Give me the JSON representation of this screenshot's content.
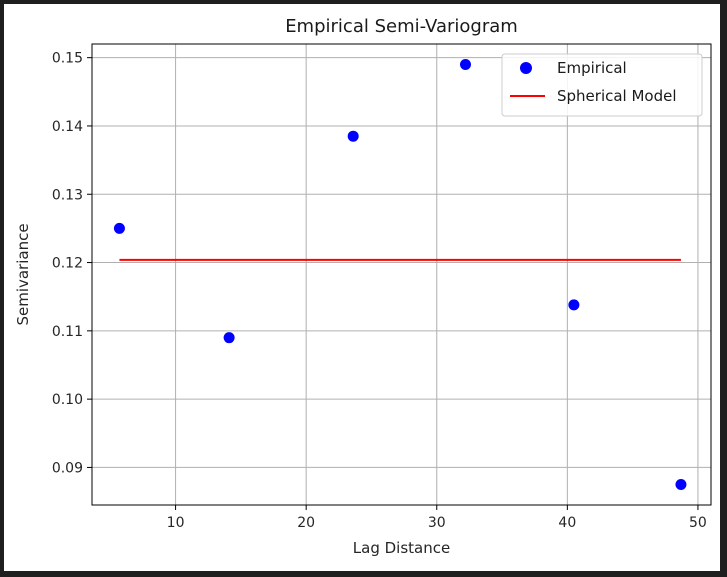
{
  "chart_data": {
    "type": "scatter",
    "title": "Empirical Semi-Variogram",
    "xlabel": "Lag Distance",
    "ylabel": "Semivariance",
    "xlim": [
      3.6,
      51.0
    ],
    "ylim": [
      0.0845,
      0.152
    ],
    "xticks": [
      10,
      20,
      30,
      40,
      50
    ],
    "yticks": [
      0.09,
      0.1,
      0.11,
      0.12,
      0.13,
      0.14,
      0.15
    ],
    "xtick_labels": [
      "10",
      "20",
      "30",
      "40",
      "50"
    ],
    "ytick_labels": [
      "0.09",
      "0.10",
      "0.11",
      "0.12",
      "0.13",
      "0.14",
      "0.15"
    ],
    "grid": true,
    "legend_position": "top-right",
    "series": [
      {
        "name": "Empirical",
        "kind": "scatter",
        "color": "#0000ff",
        "x": [
          5.7,
          14.1,
          23.6,
          32.2,
          40.5,
          48.7
        ],
        "y": [
          0.125,
          0.109,
          0.1385,
          0.149,
          0.1138,
          0.0875
        ]
      },
      {
        "name": "Spherical Model",
        "kind": "line",
        "color": "#ff0000",
        "x": [
          5.7,
          48.7
        ],
        "y": [
          0.1204,
          0.1204
        ]
      }
    ]
  }
}
